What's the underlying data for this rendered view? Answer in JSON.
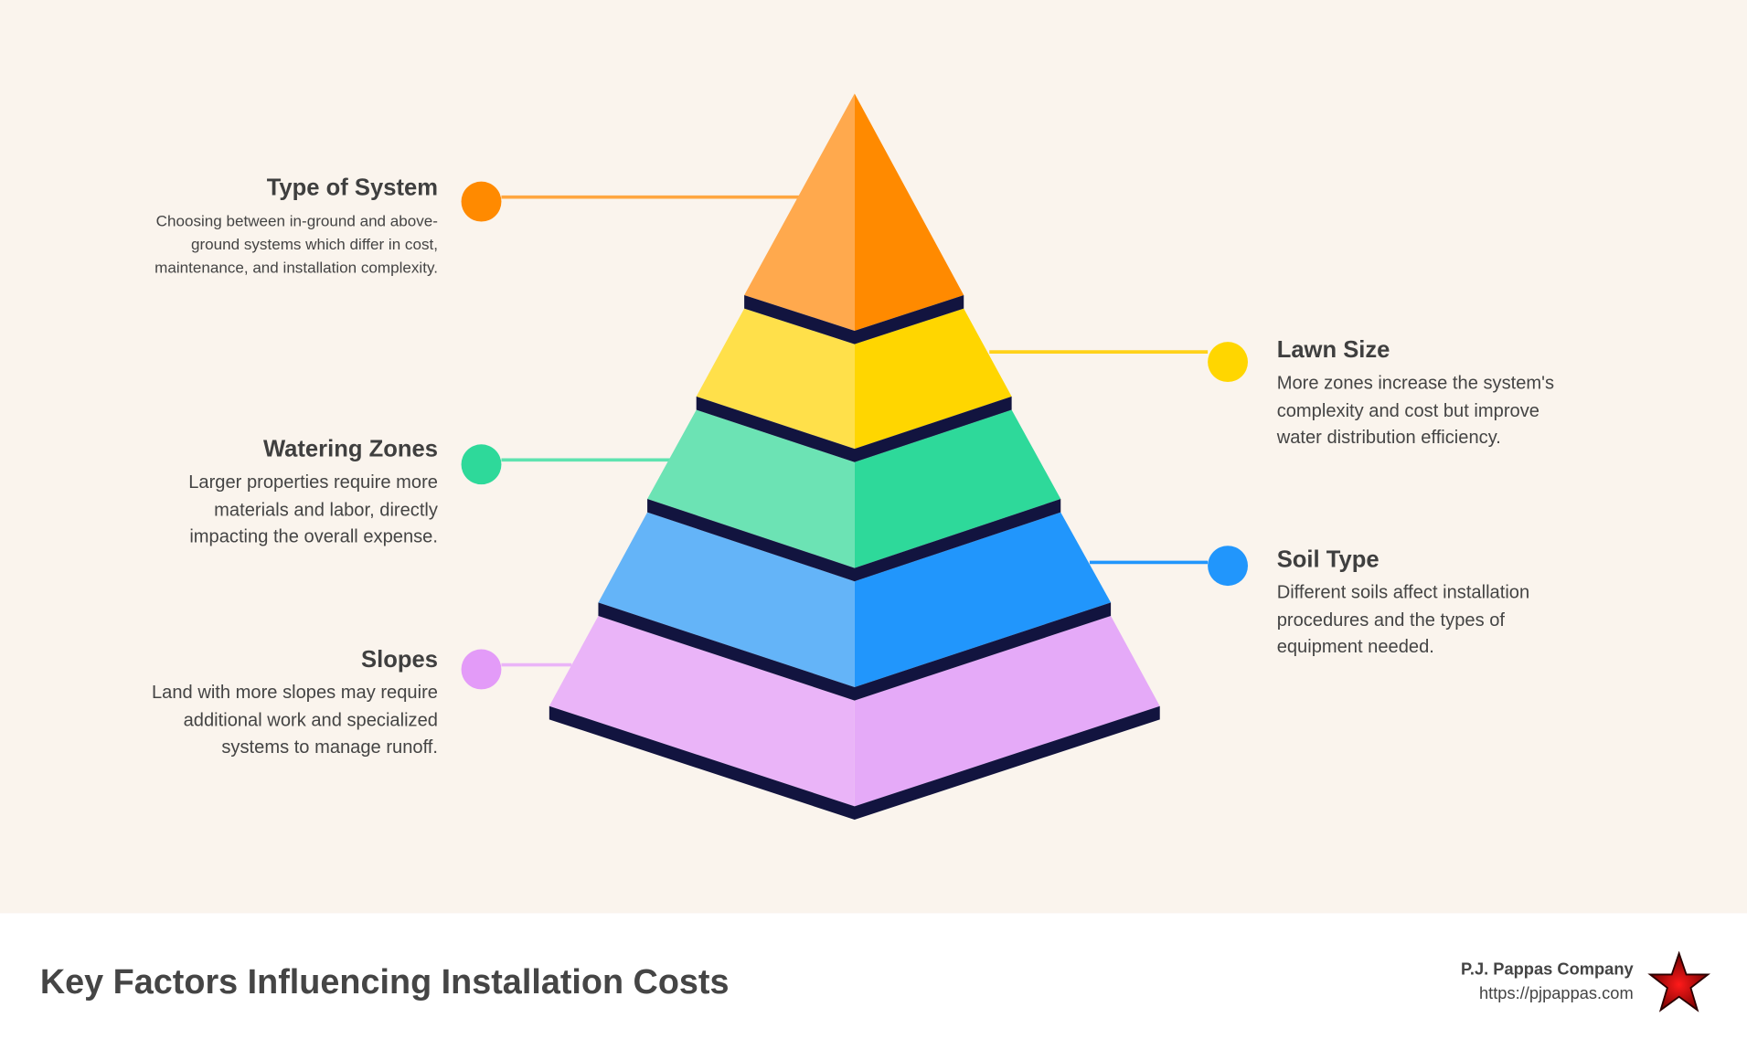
{
  "factors": {
    "type_of_system": {
      "title": "Type of System",
      "description": "Choosing between in-ground and above-ground systems which differ in cost, maintenance, and installation complexity.",
      "color": "#FF8A00"
    },
    "lawn_size": {
      "title": "Lawn Size",
      "description": "More zones increase the system's complexity and cost but improve water distribution efficiency.",
      "color": "#FFD600"
    },
    "watering_zones": {
      "title": "Watering Zones",
      "description": "Larger properties require more materials and labor, directly impacting the overall expense.",
      "color": "#2ED99A"
    },
    "soil_type": {
      "title": "Soil Type",
      "description": "Different soils affect installation procedures and the types of equipment needed.",
      "color": "#2196FC"
    },
    "slopes": {
      "title": "Slopes",
      "description": "Land with more slopes may require additional work and specialized systems to manage runoff.",
      "color": "#E5AAF8"
    }
  },
  "footer": {
    "title": "Key Factors Influencing Installation Costs",
    "company": "P.J. Pappas Company",
    "url": "https://pjpappas.com",
    "logo": "red-star-icon"
  }
}
